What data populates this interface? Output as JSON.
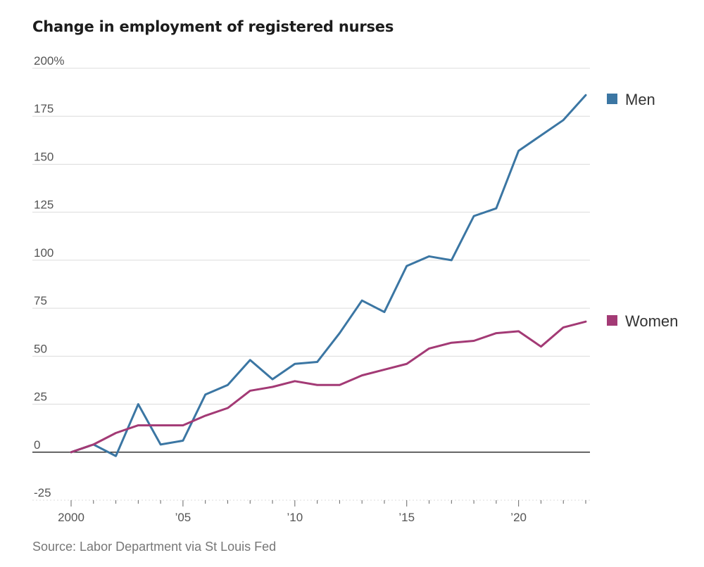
{
  "title": "Change in employment of registered nurses",
  "source": "Source: Labor Department via St Louis Fed",
  "chart_data": {
    "type": "line",
    "title": "Change in employment of registered nurses",
    "xlabel": "",
    "ylabel": "",
    "x": [
      2000,
      2001,
      2002,
      2003,
      2004,
      2005,
      2006,
      2007,
      2008,
      2009,
      2010,
      2011,
      2012,
      2013,
      2014,
      2015,
      2016,
      2017,
      2018,
      2019,
      2020,
      2021,
      2022,
      2023
    ],
    "xlim": [
      2000,
      2023
    ],
    "ylim": [
      -25,
      200
    ],
    "yticks": [
      200,
      175,
      150,
      125,
      100,
      75,
      50,
      25,
      0,
      -25
    ],
    "ytick_labels": [
      "200%",
      "175",
      "150",
      "125",
      "100",
      "75",
      "50",
      "25",
      "0",
      "-25"
    ],
    "xticks": [
      2000,
      2005,
      2010,
      2015,
      2020
    ],
    "xtick_labels": [
      "2000",
      "’05",
      "’10",
      "’15",
      "’20"
    ],
    "series": [
      {
        "name": "Men",
        "color": "#3b76a3",
        "values": [
          0,
          4,
          -2,
          25,
          4,
          6,
          30,
          35,
          48,
          38,
          46,
          47,
          62,
          79,
          73,
          97,
          102,
          100,
          123,
          127,
          157,
          165,
          173,
          186
        ]
      },
      {
        "name": "Women",
        "color": "#a33a75",
        "values": [
          0,
          4,
          10,
          14,
          14,
          14,
          19,
          23,
          32,
          34,
          37,
          35,
          35,
          40,
          43,
          46,
          54,
          57,
          58,
          62,
          63,
          55,
          65,
          68
        ]
      }
    ],
    "legend": [
      {
        "label": "Men",
        "color": "#3b76a3"
      },
      {
        "label": "Women",
        "color": "#a33a75"
      }
    ]
  }
}
